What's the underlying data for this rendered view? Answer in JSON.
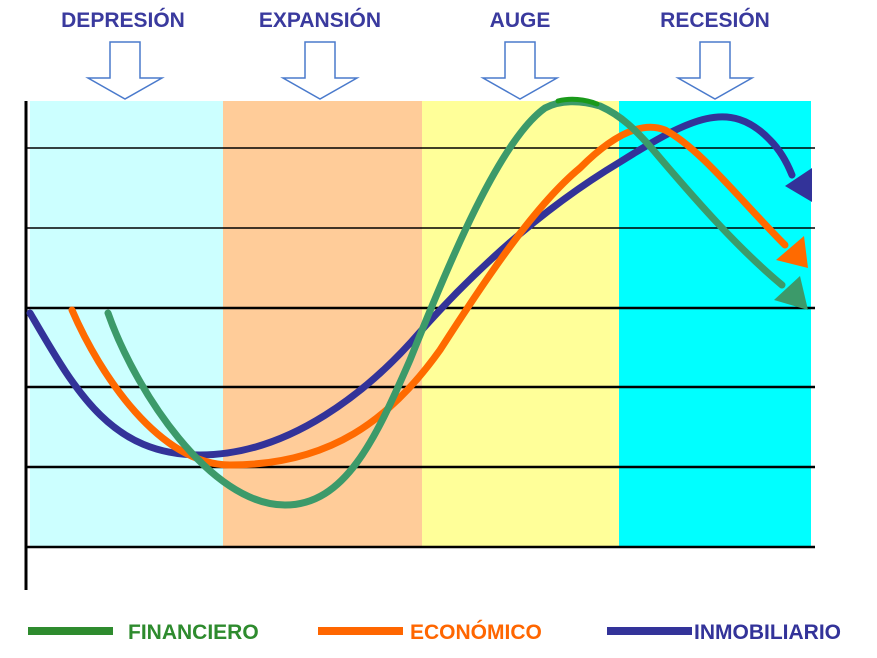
{
  "phases": [
    {
      "label": "DEPRESIÓN",
      "color": "#ccffff"
    },
    {
      "label": "EXPANSIÓN",
      "color": "#ffcc99"
    },
    {
      "label": "AUGE",
      "color": "#ffff99"
    },
    {
      "label": "RECESIÓN",
      "color": "#00ffff"
    }
  ],
  "legend": [
    {
      "label": "FINANCIERO",
      "color": "#2e8b2e"
    },
    {
      "label": "ECONÓMICO",
      "color": "#ff6600"
    },
    {
      "label": "INMOBILIARIO",
      "color": "#333399"
    }
  ],
  "curves": {
    "financiero": {
      "color": "#3c9a6a",
      "peak_color": "#1a9a1a",
      "arrow": "down-right"
    },
    "economico": {
      "color": "#ff6a00",
      "arrow": "down-right"
    },
    "inmobiliario": {
      "color": "#333399",
      "arrow": "down-right"
    }
  },
  "colors": {
    "phase_text": "#3a3a9e",
    "arrow_outline": "#4a7acc",
    "grid": "#000000"
  }
}
